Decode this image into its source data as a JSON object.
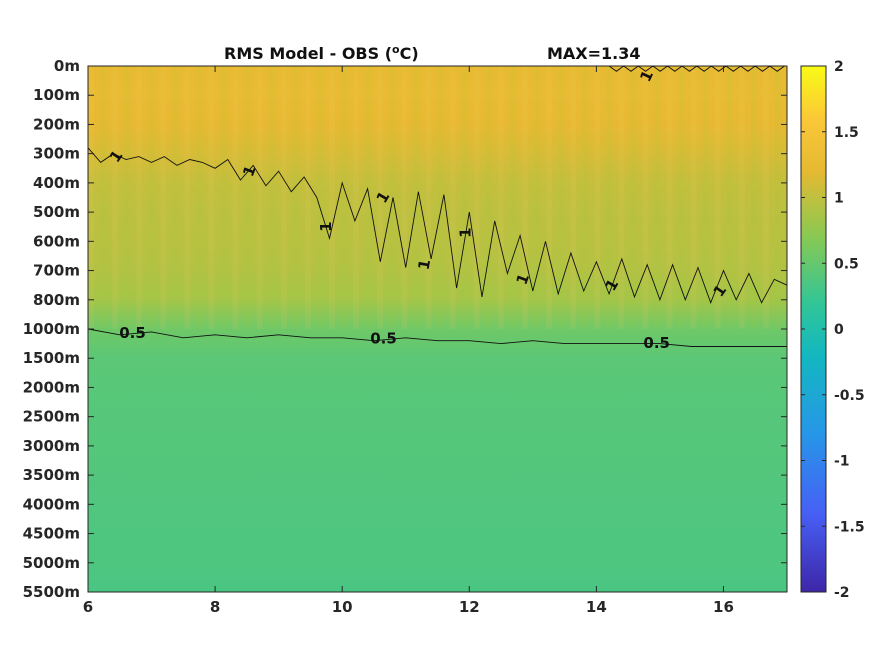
{
  "chart_data": {
    "type": "heatmap",
    "title": "RMS Model - OBS (",
    "title_unit_sup": "o",
    "title_unit": "C)",
    "max_label": "MAX=1.34",
    "colormap": "parula",
    "clim": [
      -2,
      2
    ],
    "xlim": [
      6,
      17
    ],
    "x_ticks": [
      6,
      8,
      10,
      12,
      14,
      16
    ],
    "x_tick_labels": [
      "6",
      "8",
      "10",
      "12",
      "14",
      "16"
    ],
    "y_levels": [
      "0m",
      "100m",
      "200m",
      "300m",
      "400m",
      "500m",
      "600m",
      "700m",
      "800m",
      "1000m",
      "1500m",
      "2000m",
      "2500m",
      "3000m",
      "3500m",
      "4000m",
      "4500m",
      "5000m",
      "5500m"
    ],
    "y_direction": "reversed",
    "field_profile": [
      {
        "level": "0m",
        "value": 1.22
      },
      {
        "level": "100m",
        "value": 1.24
      },
      {
        "level": "200m",
        "value": 1.21
      },
      {
        "level": "300m",
        "value": 1.12
      },
      {
        "level": "400m",
        "value": 1.02
      },
      {
        "level": "500m",
        "value": 0.98
      },
      {
        "level": "600m",
        "value": 0.96
      },
      {
        "level": "700m",
        "value": 0.93
      },
      {
        "level": "800m",
        "value": 0.85
      },
      {
        "level": "1000m",
        "value": 0.55
      },
      {
        "level": "1500m",
        "value": 0.44
      },
      {
        "level": "2000m",
        "value": 0.42
      },
      {
        "level": "2500m",
        "value": 0.41
      },
      {
        "level": "3000m",
        "value": 0.4
      },
      {
        "level": "3500m",
        "value": 0.39
      },
      {
        "level": "4000m",
        "value": 0.38
      },
      {
        "level": "4500m",
        "value": 0.37
      },
      {
        "level": "5000m",
        "value": 0.36
      },
      {
        "level": "5500m",
        "value": 0.34
      }
    ],
    "contours": [
      {
        "label": "1",
        "x": [
          6.0,
          6.2,
          6.4,
          6.6,
          6.8,
          7.0,
          7.2,
          7.4,
          7.6,
          7.8,
          8.0,
          8.2,
          8.4,
          8.6,
          8.8,
          9.0,
          9.2,
          9.4,
          9.6,
          9.8,
          10.0,
          10.2,
          10.4,
          10.6,
          10.8,
          11.0,
          11.2,
          11.4,
          11.6,
          11.8,
          12.0,
          12.2,
          12.4,
          12.6,
          12.8,
          13.0,
          13.2,
          13.4,
          13.6,
          13.8,
          14.0,
          14.2,
          14.4,
          14.6,
          14.8,
          15.0,
          15.2,
          15.4,
          15.6,
          15.8,
          16.0,
          16.2,
          16.4,
          16.6,
          16.8,
          17.0
        ],
        "y_level_index": [
          2.8,
          3.3,
          3.0,
          3.2,
          3.1,
          3.3,
          3.1,
          3.4,
          3.2,
          3.3,
          3.5,
          3.2,
          3.9,
          3.4,
          4.1,
          3.6,
          4.3,
          3.8,
          4.5,
          5.9,
          4.0,
          5.3,
          4.2,
          6.7,
          4.5,
          6.9,
          4.3,
          6.6,
          4.4,
          7.6,
          5.0,
          7.9,
          5.3,
          7.1,
          5.8,
          7.7,
          6.0,
          7.8,
          6.4,
          7.7,
          6.7,
          7.8,
          6.6,
          7.9,
          6.8,
          8.0,
          6.8,
          8.0,
          6.9,
          8.1,
          7.0,
          8.0,
          7.1,
          8.1,
          7.3,
          7.5
        ]
      },
      {
        "label": "0.5",
        "x": [
          6.0,
          6.5,
          7.0,
          7.5,
          8.0,
          8.5,
          9.0,
          9.5,
          10.0,
          10.5,
          11.0,
          11.5,
          12.0,
          12.5,
          13.0,
          13.5,
          14.0,
          14.5,
          15.0,
          15.5,
          16.0,
          16.5,
          17.0
        ],
        "y_level_index": [
          9.0,
          9.2,
          9.1,
          9.3,
          9.2,
          9.3,
          9.2,
          9.3,
          9.3,
          9.4,
          9.3,
          9.4,
          9.4,
          9.5,
          9.4,
          9.5,
          9.5,
          9.5,
          9.5,
          9.6,
          9.6,
          9.6,
          9.6
        ]
      }
    ],
    "contour_labels": [
      {
        "text": "1",
        "x": 6.45,
        "y_level_index": 3.1,
        "rot": -55
      },
      {
        "text": "1",
        "x": 8.55,
        "y_level_index": 3.6,
        "rot": -70
      },
      {
        "text": "1",
        "x": 9.75,
        "y_level_index": 5.5,
        "rot": -90
      },
      {
        "text": "1",
        "x": 10.65,
        "y_level_index": 4.5,
        "rot": -60
      },
      {
        "text": "1",
        "x": 11.3,
        "y_level_index": 6.8,
        "rot": -80
      },
      {
        "text": "1",
        "x": 11.95,
        "y_level_index": 5.7,
        "rot": -90
      },
      {
        "text": "1",
        "x": 12.85,
        "y_level_index": 7.3,
        "rot": -70
      },
      {
        "text": "1",
        "x": 14.25,
        "y_level_index": 7.5,
        "rot": -60
      },
      {
        "text": "1",
        "x": 14.8,
        "y_level_index": 0.35,
        "rot": -65
      },
      {
        "text": "1",
        "x": 15.95,
        "y_level_index": 7.7,
        "rot": -55
      },
      {
        "text": "0.5",
        "x": 6.7,
        "y_level_index": 9.15,
        "rot": 0
      },
      {
        "text": "0.5",
        "x": 10.65,
        "y_level_index": 9.35,
        "rot": 0
      },
      {
        "text": "0.5",
        "x": 14.95,
        "y_level_index": 9.5,
        "rot": 0
      }
    ],
    "colorbar": {
      "ticks": [
        2,
        1.5,
        1,
        0.5,
        0,
        -0.5,
        -1,
        -1.5,
        -2
      ],
      "tick_labels": [
        "2",
        "1.5",
        "1",
        "0.5",
        "0",
        "-0.5",
        "-1",
        "-1.5",
        "-2"
      ]
    },
    "grid": false,
    "legend": "none"
  }
}
